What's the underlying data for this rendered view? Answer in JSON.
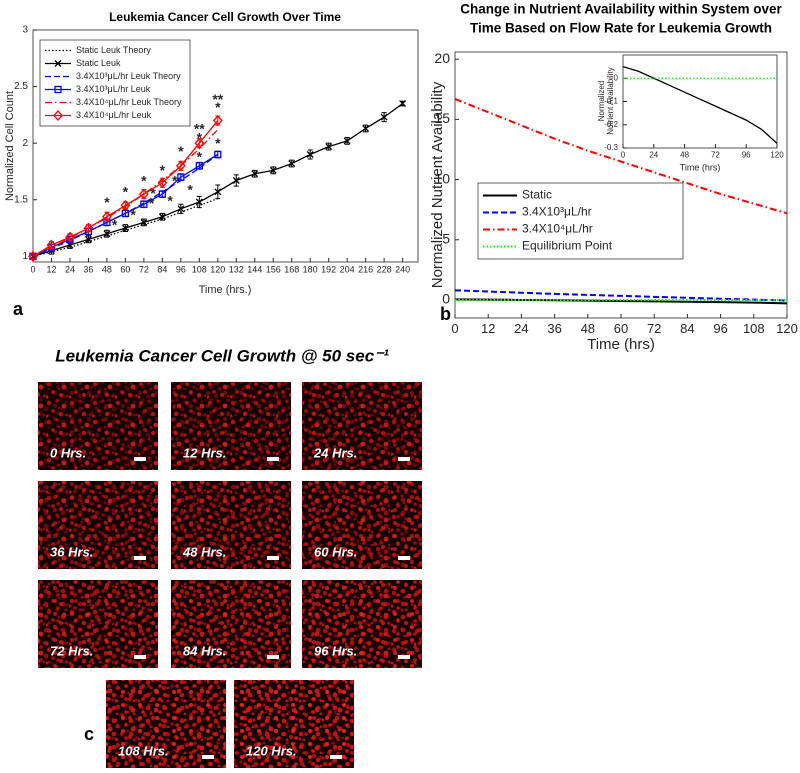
{
  "chart_data": [
    {
      "type": "line",
      "title": "Leukemia Cancer Cell Growth Over Time",
      "xlabel": "Time (hrs.)",
      "ylabel": "Normalized Cell Count",
      "panel_label": "a",
      "xlim": [
        0,
        250
      ],
      "xticks": [
        0,
        12,
        24,
        36,
        48,
        60,
        72,
        84,
        96,
        108,
        120,
        132,
        144,
        156,
        168,
        180,
        192,
        204,
        216,
        228,
        240
      ],
      "ylim": [
        0.95,
        3
      ],
      "yticks": [
        1,
        1.5,
        2,
        2.5,
        3
      ],
      "grid": false,
      "legend": "upper left",
      "series": [
        {
          "name": "Static Leuk Theory",
          "color": "#000000",
          "style": "dotted",
          "marker": "none",
          "x": [
            0,
            12,
            24,
            36,
            48,
            60,
            72,
            84,
            96,
            108,
            120
          ],
          "values": [
            1.0,
            1.04,
            1.08,
            1.13,
            1.18,
            1.23,
            1.28,
            1.33,
            1.39,
            1.45,
            1.51
          ]
        },
        {
          "name": "Static Leuk",
          "color": "#000000",
          "style": "solid",
          "marker": "x",
          "x": [
            0,
            12,
            24,
            36,
            48,
            60,
            72,
            84,
            96,
            108,
            120,
            132,
            144,
            156,
            168,
            180,
            192,
            204,
            216,
            228,
            240
          ],
          "values": [
            1.0,
            1.05,
            1.1,
            1.15,
            1.2,
            1.25,
            1.3,
            1.35,
            1.42,
            1.48,
            1.57,
            1.67,
            1.73,
            1.76,
            1.82,
            1.9,
            1.97,
            2.02,
            2.13,
            2.23,
            2.35
          ],
          "errors": [
            0.02,
            0.03,
            0.03,
            0.03,
            0.03,
            0.03,
            0.03,
            0.03,
            0.04,
            0.05,
            0.06,
            0.05,
            0.03,
            0.03,
            0.03,
            0.04,
            0.03,
            0.03,
            0.03,
            0.04,
            0.02
          ]
        },
        {
          "name": "3.4X10³μL/hr Leuk Theory",
          "color": "#0000ff",
          "style": "dashed",
          "marker": "none",
          "x": [
            0,
            12,
            24,
            36,
            48,
            60,
            72,
            84,
            96,
            108,
            120
          ],
          "values": [
            1.0,
            1.07,
            1.14,
            1.22,
            1.3,
            1.38,
            1.47,
            1.57,
            1.67,
            1.78,
            1.9
          ]
        },
        {
          "name": "3.4X10³μL/hr Leuk",
          "color": "#0000ff",
          "style": "solid",
          "marker": "square",
          "x": [
            0,
            12,
            24,
            36,
            48,
            60,
            72,
            84,
            96,
            108,
            120
          ],
          "values": [
            1.0,
            1.08,
            1.15,
            1.22,
            1.3,
            1.38,
            1.46,
            1.55,
            1.7,
            1.8,
            1.9
          ],
          "errors": [
            0.02,
            0.03,
            0.03,
            0.03,
            0.03,
            0.03,
            0.03,
            0.03,
            0.03,
            0.03,
            0.03
          ]
        },
        {
          "name": "3.4X10⁴μL/hr Leuk Theory",
          "color": "#ff0000",
          "style": "dashdot",
          "marker": "none",
          "x": [
            0,
            12,
            24,
            36,
            48,
            60,
            72,
            84,
            96,
            108,
            120
          ],
          "values": [
            1.0,
            1.08,
            1.16,
            1.25,
            1.34,
            1.44,
            1.55,
            1.67,
            1.8,
            1.95,
            2.12
          ]
        },
        {
          "name": "3.4X10⁴μL/hr Leuk",
          "color": "#ff0000",
          "style": "solid",
          "marker": "diamond",
          "x": [
            0,
            12,
            24,
            36,
            48,
            60,
            72,
            84,
            96,
            108,
            120
          ],
          "values": [
            1.0,
            1.1,
            1.17,
            1.25,
            1.35,
            1.45,
            1.55,
            1.65,
            1.8,
            2.0,
            2.2
          ],
          "errors": [
            0.02,
            0.03,
            0.03,
            0.03,
            0.04,
            0.03,
            0.04,
            0.04,
            0.04,
            0.04,
            0.04
          ]
        }
      ],
      "annotations": [
        {
          "text": "*",
          "x": 48,
          "y": 1.47
        },
        {
          "text": "*",
          "x": 53,
          "y": 1.27
        },
        {
          "text": "*",
          "x": 60,
          "y": 1.56
        },
        {
          "text": "*",
          "x": 65,
          "y": 1.36
        },
        {
          "text": "*",
          "x": 72,
          "y": 1.66
        },
        {
          "text": "*",
          "x": 77,
          "y": 1.46
        },
        {
          "text": "*",
          "x": 84,
          "y": 1.75
        },
        {
          "text": "*",
          "x": 78,
          "y": 1.55
        },
        {
          "text": "*",
          "x": 89,
          "y": 1.48
        },
        {
          "text": "*",
          "x": 96,
          "y": 1.92
        },
        {
          "text": "*",
          "x": 92,
          "y": 1.66
        },
        {
          "text": "*",
          "x": 102,
          "y": 1.58
        },
        {
          "text": "**",
          "x": 108,
          "y": 2.12
        },
        {
          "text": "*",
          "x": 108,
          "y": 2.04
        },
        {
          "text": "*",
          "x": 108,
          "y": 1.87
        },
        {
          "text": "**",
          "x": 120,
          "y": 2.38
        },
        {
          "text": "*",
          "x": 120,
          "y": 2.31
        },
        {
          "text": "*",
          "x": 120,
          "y": 1.99
        }
      ]
    },
    {
      "type": "line",
      "title": [
        "Change in Nutrient Availability within System over",
        "Time Based on Flow Rate for Leukemia Growth"
      ],
      "xlabel": "Time (hrs)",
      "ylabel": "Normalized Nutrient Availability",
      "panel_label": "b",
      "xlim": [
        0,
        120
      ],
      "xticks": [
        0,
        12,
        24,
        36,
        48,
        60,
        72,
        84,
        96,
        108,
        120
      ],
      "ylim": [
        -1.5,
        20.6
      ],
      "yticks": [
        0,
        5,
        10,
        15,
        20
      ],
      "grid": false,
      "legend": "center left",
      "series": [
        {
          "name": "Static",
          "color": "#000000",
          "style": "solid",
          "marker": "none",
          "x": [
            0,
            12,
            24,
            36,
            48,
            60,
            72,
            84,
            96,
            108,
            120
          ],
          "values": [
            0.05,
            0.03,
            0.0,
            -0.03,
            -0.06,
            -0.09,
            -0.12,
            -0.15,
            -0.18,
            -0.22,
            -0.28
          ]
        },
        {
          "name": "3.4X10³μL/hr",
          "color": "#0000ff",
          "style": "dashed",
          "marker": "none",
          "x": [
            0,
            12,
            24,
            36,
            48,
            60,
            72,
            84,
            96,
            108,
            120
          ],
          "values": [
            0.8,
            0.7,
            0.6,
            0.5,
            0.42,
            0.34,
            0.26,
            0.18,
            0.1,
            0.03,
            -0.05
          ]
        },
        {
          "name": "3.4X10⁴μL/hr",
          "color": "#ff0000",
          "style": "dashdot",
          "marker": "none",
          "x": [
            0,
            12,
            24,
            36,
            48,
            60,
            72,
            84,
            96,
            108,
            120
          ],
          "values": [
            16.7,
            15.6,
            14.5,
            13.4,
            12.4,
            11.5,
            10.6,
            9.7,
            8.8,
            8.0,
            7.2
          ]
        },
        {
          "name": "Equilibrium Point",
          "color": "#00ff00",
          "style": "dotted",
          "marker": "none",
          "x": [
            0,
            12,
            24,
            36,
            48,
            60,
            72,
            84,
            96,
            108,
            120
          ],
          "values": [
            0,
            0,
            0,
            0,
            0,
            0,
            0,
            0,
            0,
            0,
            0
          ]
        }
      ]
    },
    {
      "type": "line",
      "xlabel": "Time (hrs)",
      "ylabel": [
        "Normalized",
        "Nutrient Availability"
      ],
      "xlim": [
        0,
        120
      ],
      "xticks": [
        0,
        24,
        48,
        72,
        96,
        120
      ],
      "ylim": [
        -0.3,
        0.1
      ],
      "yticks": [
        -0.3,
        -0.2,
        -0.1,
        0
      ],
      "grid": false,
      "series": [
        {
          "color": "#000000",
          "style": "solid",
          "marker": "none",
          "x": [
            0,
            12,
            24,
            36,
            48,
            60,
            72,
            84,
            96,
            108,
            120
          ],
          "values": [
            0.05,
            0.03,
            0.0,
            -0.03,
            -0.06,
            -0.09,
            -0.12,
            -0.15,
            -0.18,
            -0.22,
            -0.28
          ]
        },
        {
          "color": "#00ff00",
          "style": "dotted",
          "marker": "none",
          "x": [
            0,
            12,
            24,
            36,
            48,
            60,
            72,
            84,
            96,
            108,
            120
          ],
          "values": [
            0,
            0,
            0,
            0,
            0,
            0,
            0,
            0,
            0,
            0,
            0
          ]
        }
      ]
    }
  ],
  "image_panel": {
    "title": "Leukemia Cancer Cell Growth @ 50 sec⁻¹",
    "panel_label": "c",
    "images": [
      "0 Hrs.",
      "12 Hrs.",
      "24 Hrs.",
      "36 Hrs.",
      "48 Hrs.",
      "60 Hrs.",
      "72 Hrs.",
      "84 Hrs.",
      "96 Hrs.",
      "108 Hrs.",
      "120 Hrs."
    ]
  }
}
